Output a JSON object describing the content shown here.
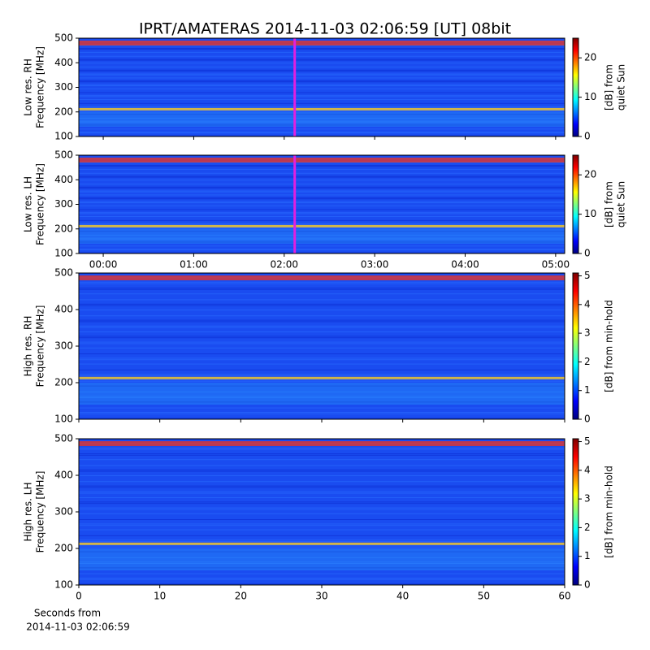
{
  "title": "IPRT/AMATERAS 2014-11-03 02:06:59 [UT]   08bit",
  "chart_data": [
    {
      "type": "heatmap",
      "ylabel": [
        "Low res. RH",
        "Frequency [MHz]"
      ],
      "xlim": [
        -0.27,
        5.1
      ],
      "xticks": [
        0,
        1,
        2,
        3,
        4,
        5
      ],
      "ylim": [
        100,
        500
      ],
      "yticks": [
        100,
        200,
        300,
        400,
        500
      ],
      "cursor_x": 2.116,
      "cursor_color": "#e020e0",
      "colormap": "jet",
      "clim": [
        0,
        25
      ],
      "cticks": [
        0,
        10,
        20
      ],
      "clabel": [
        "[dB] from",
        "quiet Sun"
      ]
    },
    {
      "type": "heatmap",
      "ylabel": [
        "Low res. LH",
        "Frequency [MHz]"
      ],
      "xlim": [
        -0.27,
        5.1
      ],
      "xticks": [
        {
          "value": 0,
          "label": "00:00"
        },
        {
          "value": 1,
          "label": "01:00"
        },
        {
          "value": 2,
          "label": "02:00"
        },
        {
          "value": 3,
          "label": "03:00"
        },
        {
          "value": 4,
          "label": "04:00"
        },
        {
          "value": 5,
          "label": "05:00"
        }
      ],
      "ylim": [
        100,
        500
      ],
      "yticks": [
        100,
        200,
        300,
        400,
        500
      ],
      "cursor_x": 2.116,
      "cursor_color": "#e020e0",
      "colormap": "jet",
      "clim": [
        0,
        25
      ],
      "cticks": [
        0,
        10,
        20
      ],
      "clabel": [
        "[dB] from",
        "quiet Sun"
      ]
    },
    {
      "type": "heatmap",
      "ylabel": [
        "High res. RH",
        "Frequency [MHz]"
      ],
      "xlim": [
        0,
        60
      ],
      "xticks": [
        0,
        10,
        20,
        30,
        40,
        50,
        60
      ],
      "show_xtick_labels": false,
      "ylim": [
        100,
        500
      ],
      "yticks": [
        100,
        200,
        300,
        400,
        500
      ],
      "colormap": "jet",
      "clim": [
        0,
        5.1
      ],
      "cticks": [
        0,
        1,
        2,
        3,
        4,
        5
      ],
      "clabel": [
        "[dB] from min-hold"
      ]
    },
    {
      "type": "heatmap",
      "ylabel": [
        "High res. LH",
        "Frequency [MHz]"
      ],
      "xlim": [
        0,
        60
      ],
      "xticks": [
        0,
        10,
        20,
        30,
        40,
        50,
        60
      ],
      "xlabel": [
        "Seconds from",
        "2014-11-03 02:06:59"
      ],
      "ylim": [
        100,
        500
      ],
      "yticks": [
        100,
        200,
        300,
        400,
        500
      ],
      "colormap": "jet",
      "clim": [
        0,
        5.1
      ],
      "cticks": [
        0,
        1,
        2,
        3,
        4,
        5
      ],
      "clabel": [
        "[dB] from min-hold"
      ]
    }
  ]
}
